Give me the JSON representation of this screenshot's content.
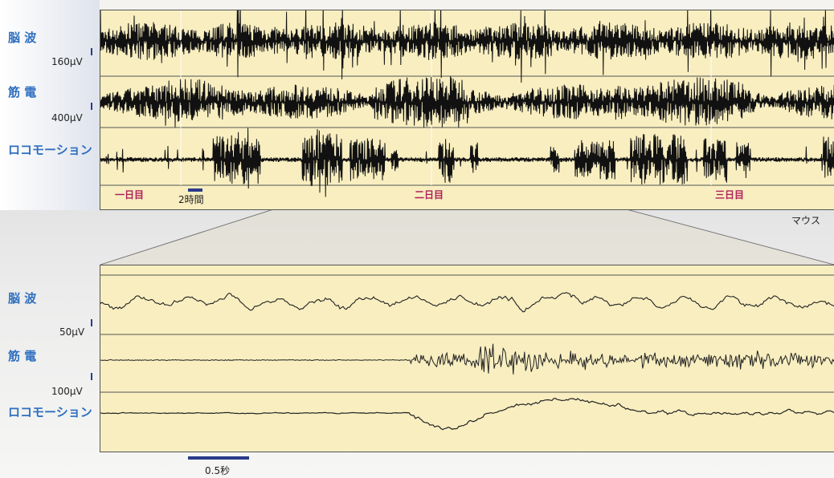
{
  "overview": {
    "channels": [
      {
        "label": "脳 波",
        "scale": "160μV"
      },
      {
        "label": "筋 電",
        "scale": "400μV"
      },
      {
        "label": "ロコモーション"
      }
    ],
    "days": [
      "一日目",
      "二日目",
      "三日目"
    ],
    "time_scale": "2時間",
    "subject": "マウス"
  },
  "zoom": {
    "channels": [
      {
        "label": "脳 波",
        "scale": "50μV"
      },
      {
        "label": "筋 電",
        "scale": "100μV"
      },
      {
        "label": "ロコモーション"
      }
    ],
    "time_scale": "0.5秒"
  }
}
